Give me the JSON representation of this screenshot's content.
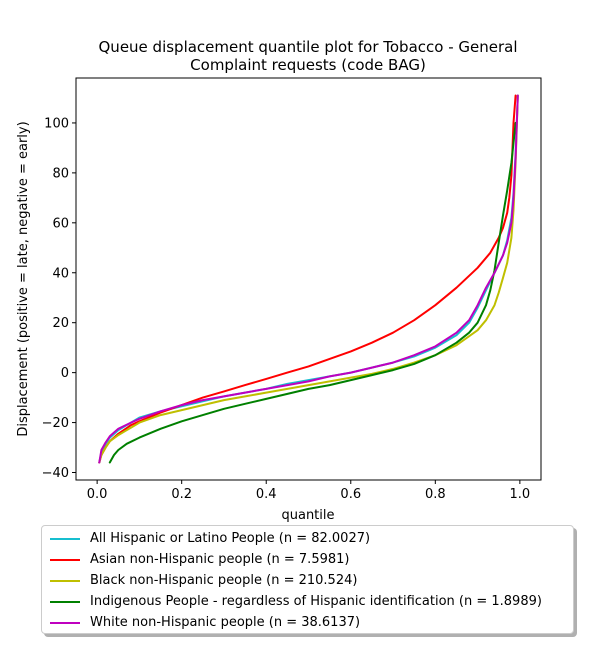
{
  "chart_data": {
    "type": "line",
    "title": "Queue displacement quantile plot for Tobacco - General Complaint  requests (code BAG)",
    "title_lines": [
      "Queue displacement quantile plot for Tobacco - General",
      "Complaint  requests (code BAG)"
    ],
    "xlabel": "quantile",
    "ylabel": "Displacement (positive = late, negative = early)",
    "xlim": [
      -0.05,
      1.05
    ],
    "ylim": [
      -43,
      118
    ],
    "xticks": [
      0.0,
      0.2,
      0.4,
      0.6,
      0.8,
      1.0
    ],
    "xtick_labels": [
      "0.0",
      "0.2",
      "0.4",
      "0.6",
      "0.8",
      "1.0"
    ],
    "yticks": [
      -40,
      -20,
      0,
      20,
      40,
      60,
      80,
      100
    ],
    "ytick_labels": [
      "−40",
      "−20",
      "0",
      "20",
      "40",
      "60",
      "80",
      "100"
    ],
    "grid": false,
    "legend_position": "below",
    "series": [
      {
        "name": "All Hispanic or Latino People (n = 82.0027)",
        "color": "#17becf",
        "x": [
          0.005,
          0.01,
          0.02,
          0.03,
          0.05,
          0.08,
          0.1,
          0.15,
          0.2,
          0.25,
          0.3,
          0.35,
          0.4,
          0.45,
          0.5,
          0.55,
          0.6,
          0.65,
          0.7,
          0.75,
          0.8,
          0.85,
          0.88,
          0.9,
          0.92,
          0.94,
          0.96,
          0.97,
          0.98,
          0.985,
          0.99,
          0.995
        ],
        "y": [
          -36,
          -32,
          -28.5,
          -26,
          -23,
          -20,
          -18,
          -15.5,
          -13.5,
          -11.5,
          -9.5,
          -8,
          -6.5,
          -4.5,
          -3,
          -1.5,
          0,
          2,
          4,
          6.5,
          10,
          15,
          20,
          26,
          33,
          40,
          47,
          53,
          62,
          72,
          88,
          111
        ]
      },
      {
        "name": "Asian non-Hispanic people (n = 7.5981)",
        "color": "#ff0000",
        "x": [
          0.005,
          0.01,
          0.02,
          0.03,
          0.05,
          0.08,
          0.1,
          0.15,
          0.2,
          0.25,
          0.3,
          0.35,
          0.4,
          0.45,
          0.5,
          0.55,
          0.6,
          0.65,
          0.7,
          0.75,
          0.8,
          0.85,
          0.9,
          0.93,
          0.95,
          0.96,
          0.97,
          0.975,
          0.98,
          0.985,
          0.99
        ],
        "y": [
          -36,
          -33,
          -30,
          -27.5,
          -24.5,
          -21,
          -19.5,
          -16,
          -13,
          -10,
          -7.5,
          -5,
          -2.5,
          0,
          2.5,
          5.5,
          8.5,
          12,
          16,
          21,
          27,
          34,
          42,
          48,
          54,
          58,
          64,
          70,
          79,
          100,
          111
        ]
      },
      {
        "name": "Black non-Hispanic people (n = 210.524)",
        "color": "#bfbf00",
        "x": [
          0.005,
          0.01,
          0.02,
          0.03,
          0.05,
          0.08,
          0.1,
          0.15,
          0.2,
          0.25,
          0.3,
          0.35,
          0.4,
          0.45,
          0.5,
          0.55,
          0.6,
          0.65,
          0.7,
          0.75,
          0.8,
          0.85,
          0.9,
          0.92,
          0.94,
          0.95,
          0.96,
          0.97,
          0.98,
          0.985,
          0.99,
          0.995
        ],
        "y": [
          -36,
          -33,
          -30,
          -27.5,
          -25,
          -22,
          -20,
          -17,
          -15,
          -13,
          -11,
          -9.5,
          -8,
          -6.5,
          -5,
          -3.5,
          -2,
          -0.5,
          1.5,
          4,
          7,
          11,
          17,
          21,
          27,
          32,
          38,
          44,
          54,
          65,
          84,
          111
        ]
      },
      {
        "name": "Indigenous People - regardless of Hispanic identification (n = 1.8989)",
        "color": "#008000",
        "x": [
          0.03,
          0.04,
          0.05,
          0.07,
          0.1,
          0.15,
          0.2,
          0.25,
          0.3,
          0.35,
          0.4,
          0.45,
          0.5,
          0.55,
          0.6,
          0.65,
          0.7,
          0.75,
          0.8,
          0.85,
          0.88,
          0.9,
          0.92,
          0.93,
          0.94,
          0.95,
          0.96,
          0.97,
          0.98,
          0.985,
          0.99
        ],
        "y": [
          -36,
          -33,
          -31,
          -28.5,
          -26,
          -22.5,
          -19.5,
          -17,
          -14.5,
          -12.5,
          -10.5,
          -8.5,
          -6.5,
          -5,
          -3,
          -1,
          1,
          3.5,
          7,
          12,
          16,
          20,
          27,
          33,
          41,
          52,
          63,
          73,
          84,
          92,
          100
        ]
      },
      {
        "name": "White non-Hispanic people (n = 38.6137)",
        "color": "#bf00bf",
        "x": [
          0.005,
          0.01,
          0.02,
          0.03,
          0.05,
          0.08,
          0.1,
          0.15,
          0.2,
          0.25,
          0.3,
          0.35,
          0.4,
          0.45,
          0.5,
          0.55,
          0.6,
          0.65,
          0.7,
          0.75,
          0.8,
          0.85,
          0.88,
          0.9,
          0.92,
          0.94,
          0.96,
          0.97,
          0.98,
          0.985,
          0.99,
          0.995
        ],
        "y": [
          -36,
          -31,
          -28,
          -25.5,
          -22.5,
          -20,
          -18.5,
          -15.5,
          -13,
          -11,
          -9.5,
          -8,
          -6.5,
          -5,
          -3.5,
          -1.5,
          0,
          2,
          4,
          7,
          10.5,
          16,
          21,
          27,
          34,
          40,
          47,
          52,
          60,
          70,
          86,
          111
        ]
      }
    ]
  }
}
